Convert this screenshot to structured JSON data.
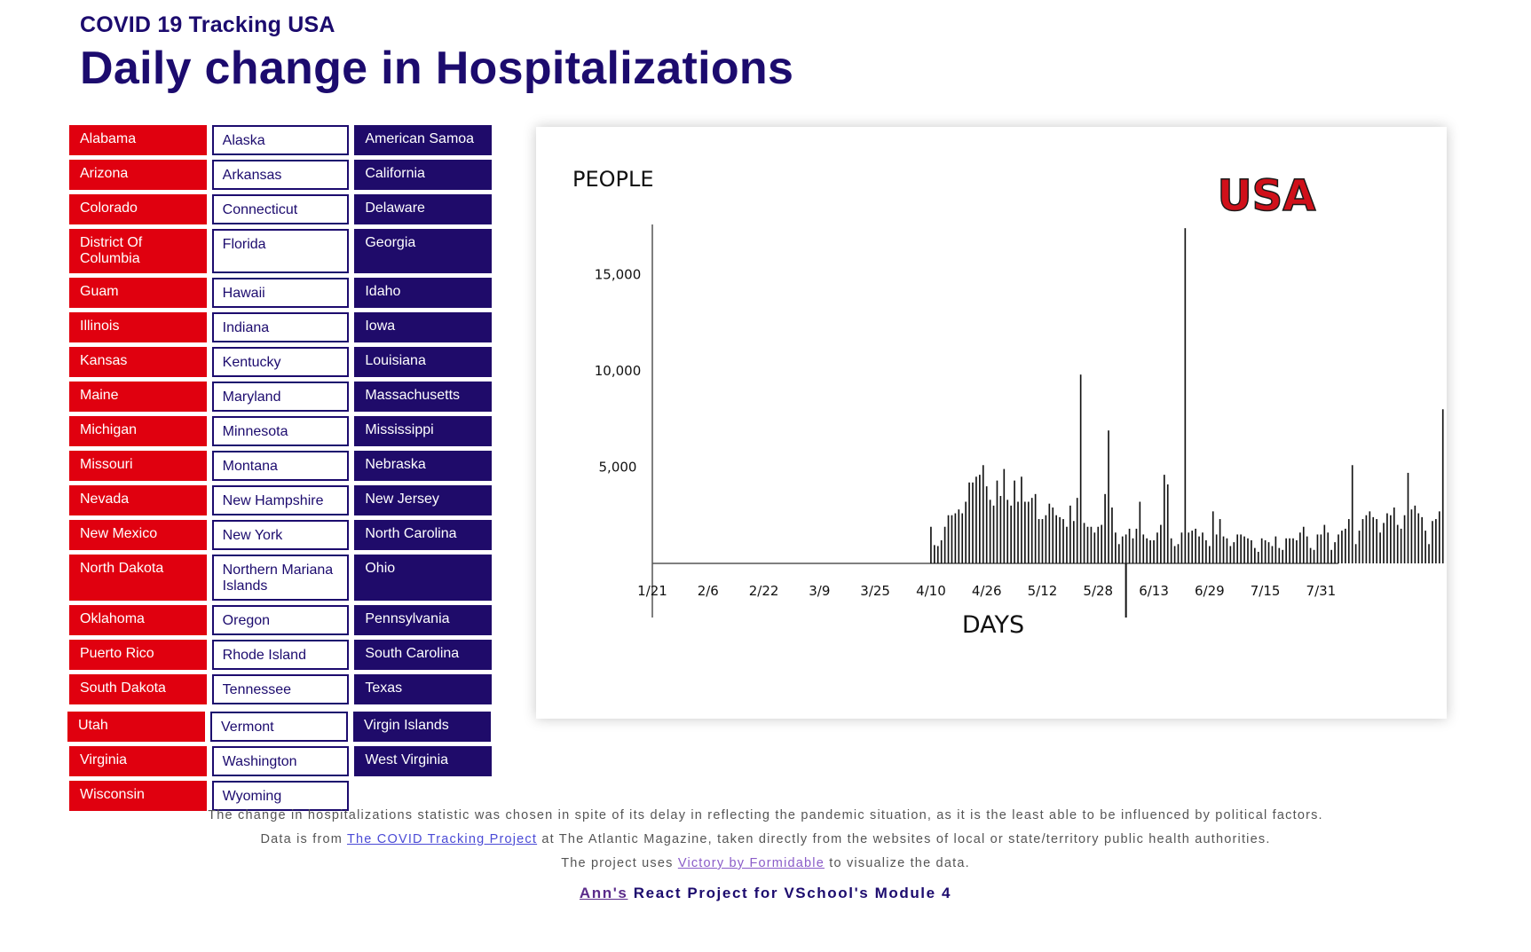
{
  "header": {
    "subtitle": "COVID 19 Tracking USA",
    "title": "Daily change in Hospitalizations"
  },
  "states": [
    [
      "Alabama",
      "Alaska",
      "American Samoa"
    ],
    [
      "Arizona",
      "Arkansas",
      "California"
    ],
    [
      "Colorado",
      "Connecticut",
      "Delaware"
    ],
    [
      "District Of Columbia",
      "Florida",
      "Georgia"
    ],
    [
      "Guam",
      "Hawaii",
      "Idaho"
    ],
    [
      "Illinois",
      "Indiana",
      "Iowa"
    ],
    [
      "Kansas",
      "Kentucky",
      "Louisiana"
    ],
    [
      "Maine",
      "Maryland",
      "Massachusetts"
    ],
    [
      "Michigan",
      "Minnesota",
      "Mississippi"
    ],
    [
      "Missouri",
      "Montana",
      "Nebraska"
    ],
    [
      "Nevada",
      "New Hampshire",
      "New Jersey"
    ],
    [
      "New Mexico",
      "New York",
      "North Carolina"
    ],
    [
      "North Dakota",
      "Northern Mariana Islands",
      "Ohio"
    ],
    [
      "Oklahoma",
      "Oregon",
      "Pennsylvania"
    ],
    [
      "Puerto Rico",
      "Rhode Island",
      "South Carolina"
    ],
    [
      "South Dakota",
      "Tennessee",
      "Texas"
    ],
    [
      "Utah",
      "Vermont",
      "Virgin Islands"
    ],
    [
      "Virginia",
      "Washington",
      "West Virginia"
    ],
    [
      "Wisconsin",
      "Wyoming",
      ""
    ]
  ],
  "colors": {
    "red": "#e0000f",
    "navy": "#1f0b6a",
    "region_label": "#d0101a"
  },
  "chart_data": {
    "type": "bar",
    "region_label": "USA",
    "ylabel": "PEOPLE",
    "xlabel": "DAYS",
    "yticks": [
      5000,
      10000,
      15000
    ],
    "ytick_labels": [
      "5,000",
      "10,000",
      "15,000"
    ],
    "ylim": [
      0,
      17500
    ],
    "xtick_labels": [
      "1/21",
      "2/6",
      "2/22",
      "3/9",
      "3/25",
      "4/10",
      "4/26",
      "5/12",
      "5/28",
      "6/13",
      "6/29",
      "7/15",
      "7/31"
    ],
    "x_start": "2020-01-21",
    "x_end": "2020-08-05",
    "values": [
      0,
      0,
      0,
      0,
      0,
      0,
      0,
      0,
      0,
      0,
      0,
      0,
      0,
      0,
      0,
      0,
      0,
      0,
      0,
      0,
      0,
      0,
      0,
      0,
      0,
      0,
      0,
      0,
      0,
      0,
      0,
      0,
      0,
      0,
      0,
      0,
      0,
      0,
      0,
      0,
      0,
      0,
      0,
      0,
      0,
      0,
      0,
      0,
      0,
      0,
      0,
      0,
      0,
      0,
      0,
      0,
      0,
      0,
      0,
      0,
      0,
      0,
      0,
      0,
      0,
      0,
      0,
      0,
      0,
      0,
      0,
      0,
      0,
      0,
      0,
      0,
      0,
      0,
      0,
      0,
      1900,
      950,
      900,
      1200,
      1900,
      2500,
      2500,
      2600,
      2800,
      2600,
      3200,
      4200,
      4200,
      4500,
      4600,
      5100,
      4000,
      3300,
      3000,
      4300,
      3500,
      4900,
      3300,
      3000,
      4300,
      3200,
      4500,
      3200,
      3200,
      3400,
      3600,
      2300,
      2300,
      2500,
      3100,
      2900,
      2500,
      2400,
      2300,
      1900,
      3000,
      2200,
      3400,
      9800,
      2100,
      1900,
      1900,
      1600,
      1900,
      2000,
      3600,
      6900,
      2900,
      1600,
      1000,
      1400,
      1500,
      1800,
      1300,
      1800,
      3200,
      1500,
      1300,
      1200,
      1200,
      1600,
      2000,
      4600,
      4100,
      1300,
      900,
      1000,
      1600,
      17400,
      1600,
      1700,
      1800,
      1400,
      1600,
      1200,
      900,
      2700,
      1500,
      2300,
      1400,
      1300,
      900,
      1100,
      1500,
      1500,
      1400,
      1300,
      1200,
      800,
      600,
      1300,
      1200,
      1100,
      900,
      1400,
      800,
      700,
      1300,
      1300,
      1300,
      1200,
      1600,
      1900,
      1400,
      800,
      700,
      1500,
      1500,
      2000,
      1600,
      700,
      1100,
      1500,
      1700,
      1800,
      2300,
      5100,
      1000,
      1700,
      2300,
      2500,
      2700,
      2400,
      2300,
      1600,
      2100,
      2600,
      2500,
      2900,
      2000,
      1800,
      2500,
      4700,
      2800,
      3000,
      2600,
      2400,
      1700,
      1000,
      2200,
      2300,
      2700,
      8000
    ]
  },
  "footer": {
    "line1": "The change in hospitalizations statistic was chosen in spite of its delay in reflecting the pandemic situation, as it is the least able to be influenced by political factors.",
    "line2_before": "Data is from",
    "line2_link": "The COVID Tracking Project",
    "line2_after": "at The Atlantic Magazine, taken directly from the websites of local or state/territory public health authorities.",
    "line3_before": "The project uses",
    "line3_link": "Victory by Formidable",
    "line3_after": "to visualize the data.",
    "credit_link": "Ann's",
    "credit_rest": "React Project for VSchool's Module 4"
  }
}
